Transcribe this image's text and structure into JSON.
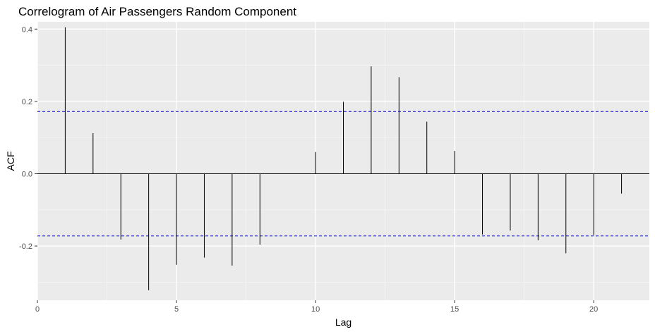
{
  "chart_data": {
    "type": "bar",
    "title": "Correlogram of Air Passengers Random Component",
    "xlabel": "Lag",
    "ylabel": "ACF",
    "xlim": [
      0,
      22
    ],
    "ylim": [
      -0.35,
      0.42
    ],
    "x_ticks": [
      0,
      5,
      10,
      15,
      20
    ],
    "y_ticks": [
      -0.2,
      0.0,
      0.2,
      0.4
    ],
    "y_tick_labels": [
      "-0.2",
      "0.0",
      "0.2",
      "0.4"
    ],
    "x_tick_labels": [
      "0",
      "5",
      "10",
      "15",
      "20"
    ],
    "grid": true,
    "lags": [
      1,
      2,
      3,
      4,
      5,
      6,
      7,
      8,
      9,
      10,
      11,
      12,
      13,
      14,
      15,
      16,
      17,
      18,
      19,
      20,
      21
    ],
    "values": [
      0.405,
      0.112,
      -0.182,
      -0.322,
      -0.252,
      -0.232,
      -0.254,
      -0.196,
      0.0,
      0.06,
      0.199,
      0.297,
      0.267,
      0.144,
      0.063,
      -0.168,
      -0.157,
      -0.184,
      -0.22,
      -0.17,
      -0.055
    ],
    "confidence_bound": 0.172,
    "colors": {
      "panel_bg": "#ebebeb",
      "grid_major": "#ffffff",
      "grid_minor": "#f5f5f5",
      "bar": "#000000",
      "zero_line": "#000000",
      "ci_line": "#0000cd",
      "tick_text": "#4d4d4d"
    }
  }
}
